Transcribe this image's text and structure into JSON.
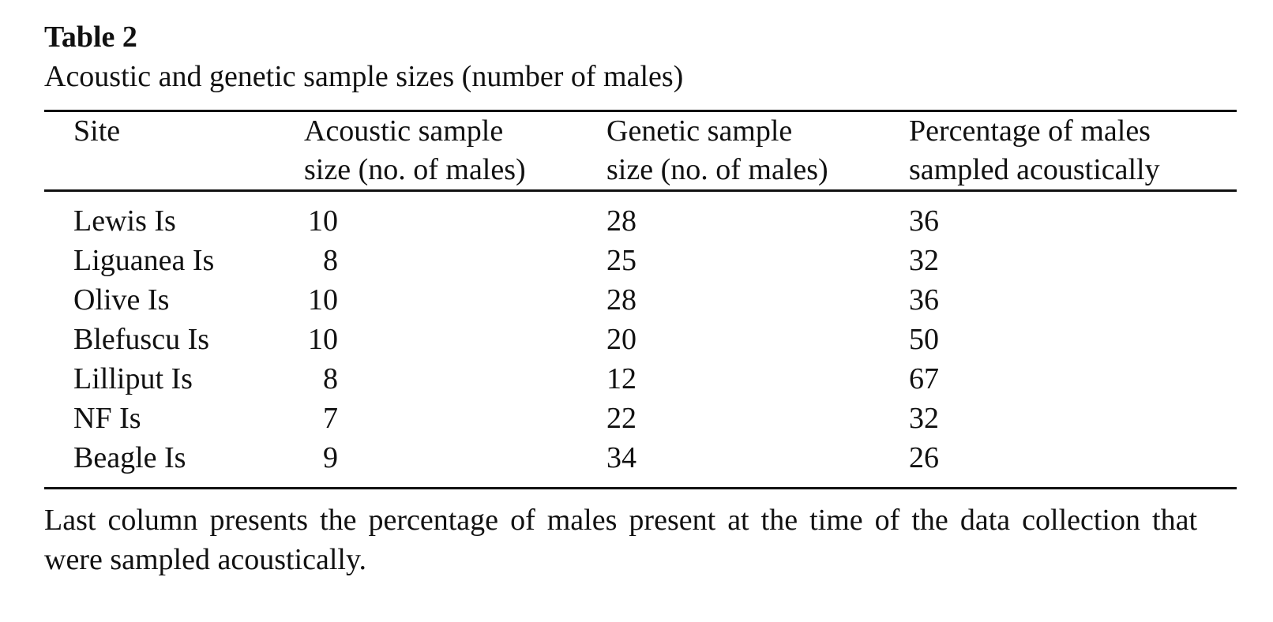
{
  "table": {
    "label": "Table 2",
    "caption": "Acoustic and genetic sample sizes (number of males)",
    "headers": [
      {
        "line1": "Site",
        "line2": ""
      },
      {
        "line1": "Acoustic sample",
        "line2": "size (no. of males)"
      },
      {
        "line1": "Genetic sample",
        "line2": "size (no. of males)"
      },
      {
        "line1": "Percentage of males",
        "line2": "sampled acoustically"
      }
    ],
    "rows": [
      {
        "site": "Lewis Is",
        "acoustic": "10",
        "genetic": "28",
        "percent": "36"
      },
      {
        "site": "Liguanea Is",
        "acoustic": "8",
        "genetic": "25",
        "percent": "32"
      },
      {
        "site": "Olive Is",
        "acoustic": "10",
        "genetic": "28",
        "percent": "36"
      },
      {
        "site": "Blefuscu Is",
        "acoustic": "10",
        "genetic": "20",
        "percent": "50"
      },
      {
        "site": "Lilliput Is",
        "acoustic": "8",
        "genetic": "12",
        "percent": "67"
      },
      {
        "site": "NF Is",
        "acoustic": "7",
        "genetic": "22",
        "percent": "32"
      },
      {
        "site": "Beagle Is",
        "acoustic": "9",
        "genetic": "34",
        "percent": "26"
      }
    ],
    "footnote": "Last column presents the percentage of males present at the time of the data collection that were sampled acoustically."
  }
}
